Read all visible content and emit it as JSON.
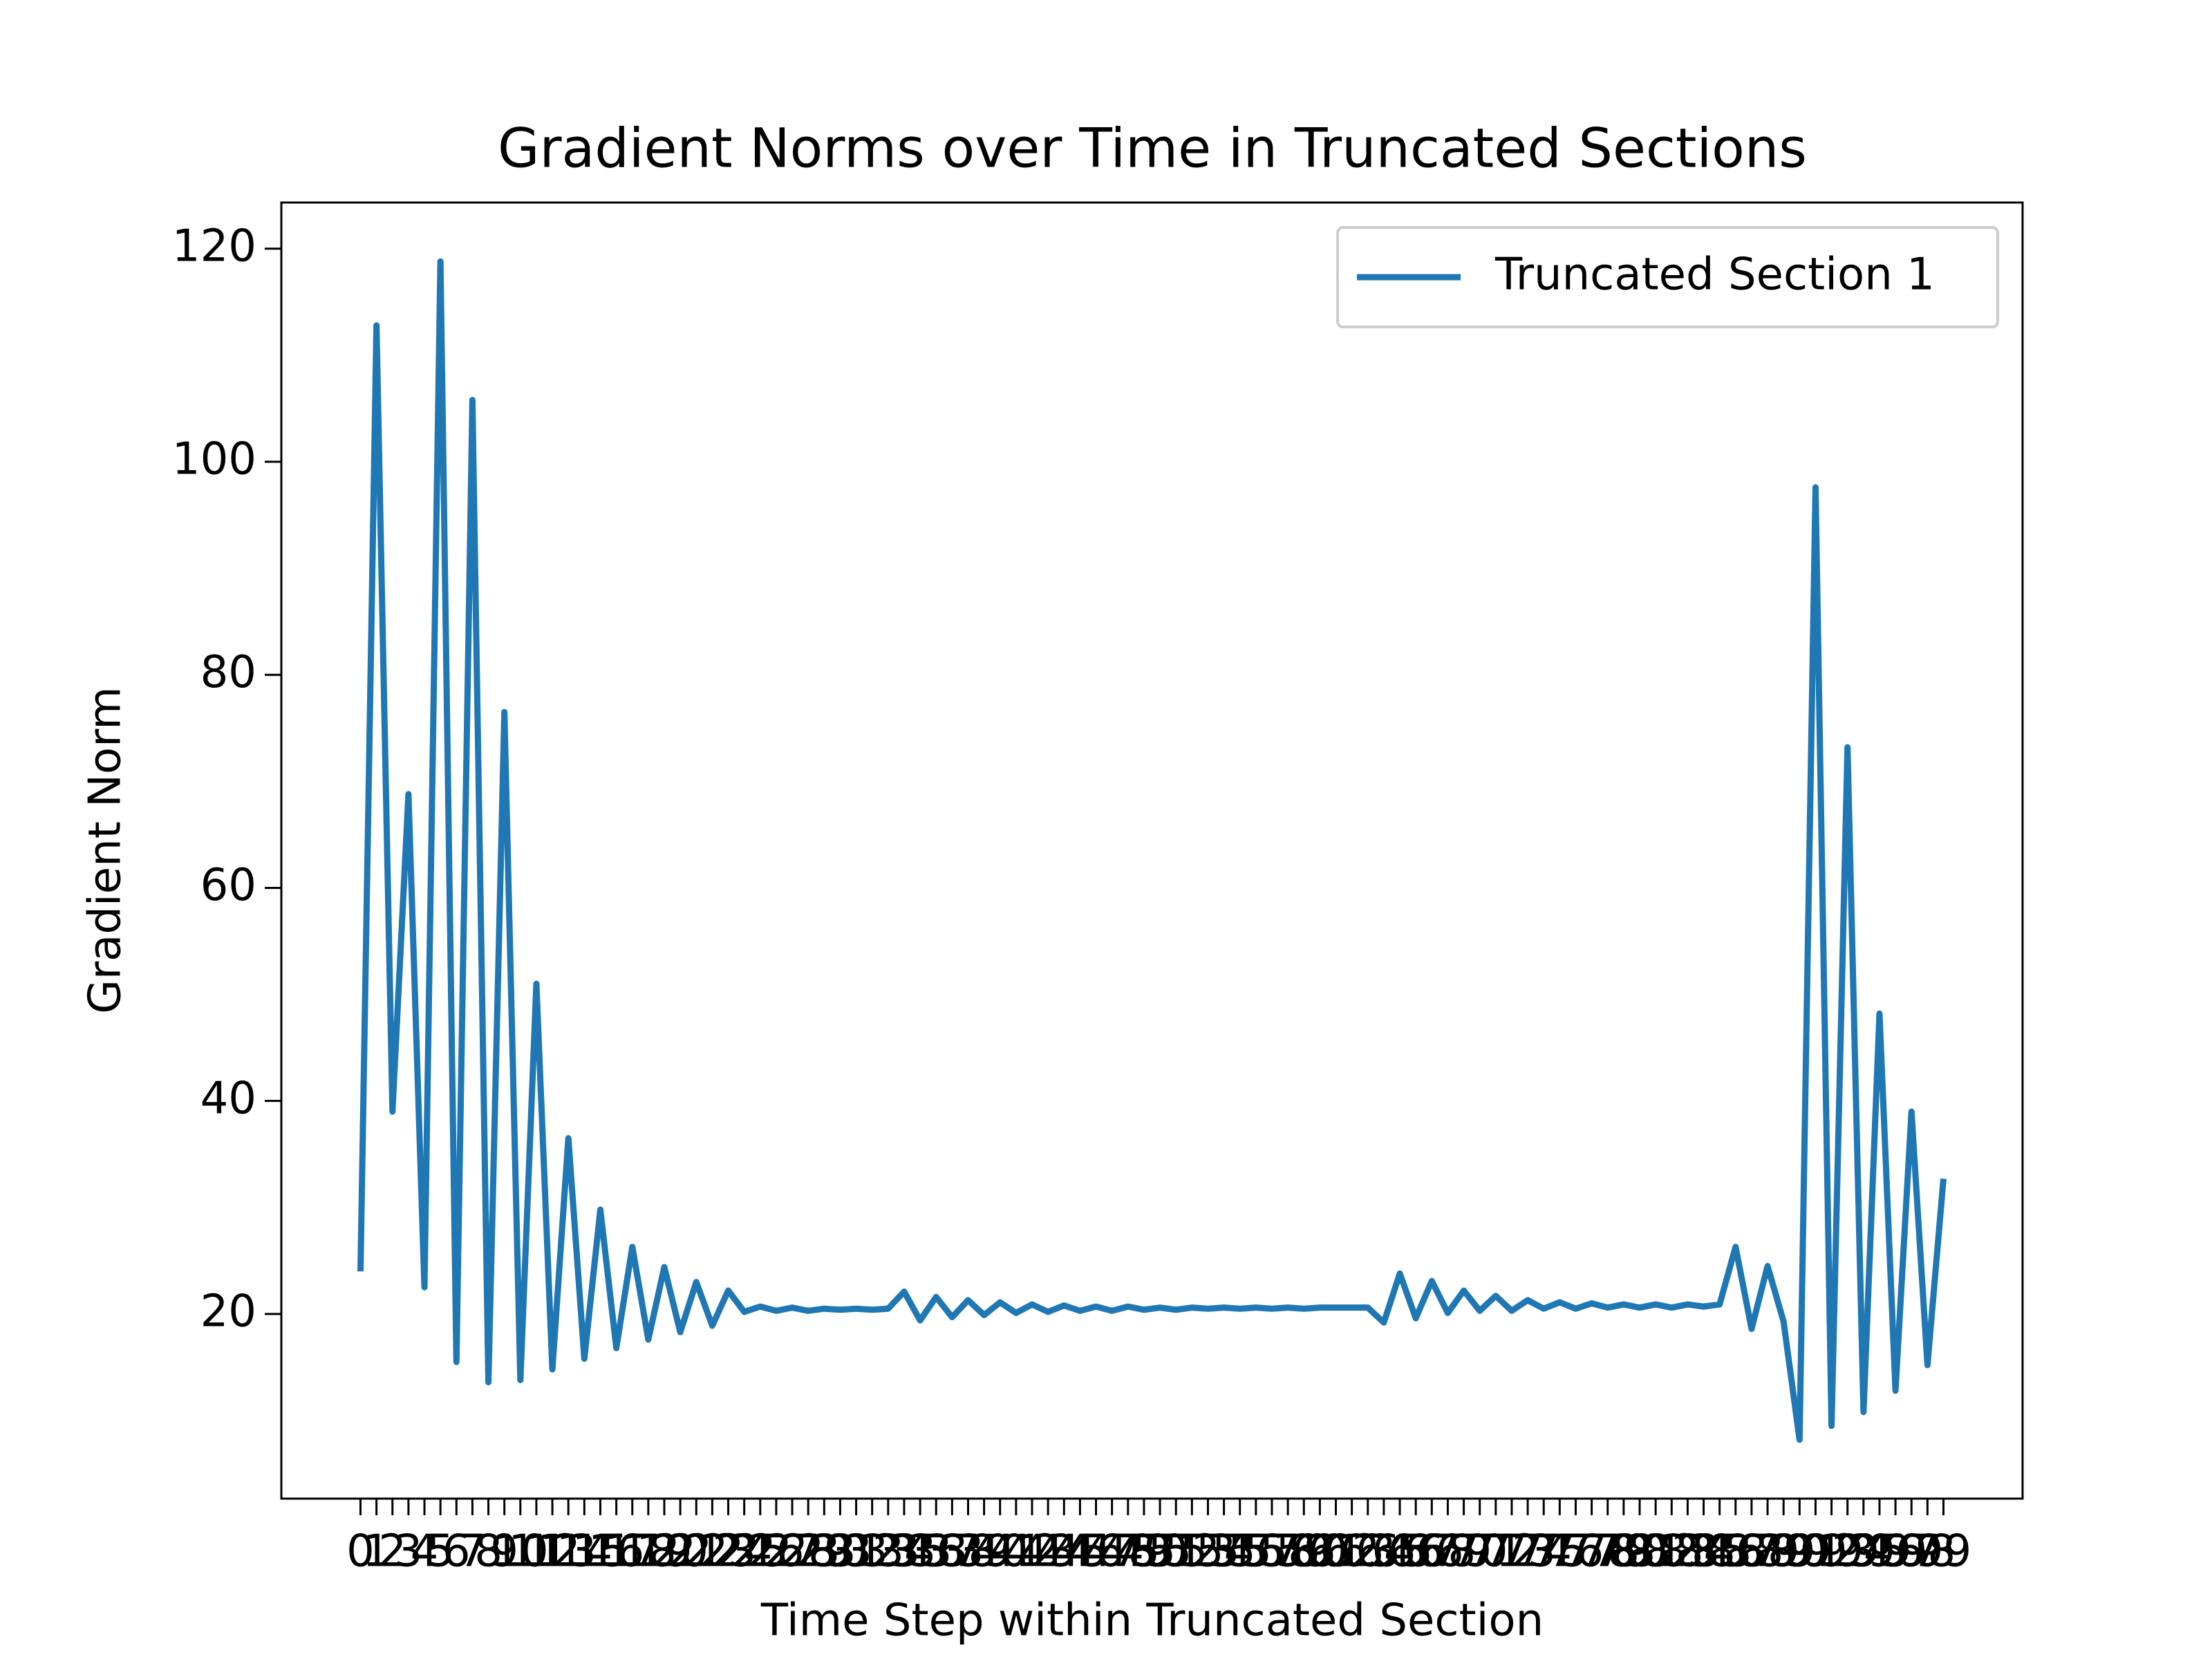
{
  "chart_data": {
    "type": "line",
    "title": "Gradient Norms over Time in Truncated Sections",
    "xlabel": "Time Step within Truncated Section",
    "ylabel": "Gradient Norm",
    "x": [
      0,
      1,
      2,
      3,
      4,
      5,
      6,
      7,
      8,
      9,
      10,
      11,
      12,
      13,
      14,
      15,
      16,
      17,
      18,
      19,
      20,
      21,
      22,
      23,
      24,
      25,
      26,
      27,
      28,
      29,
      30,
      31,
      32,
      33,
      34,
      35,
      36,
      37,
      38,
      39,
      40,
      41,
      42,
      43,
      44,
      45,
      46,
      47,
      48,
      49,
      50,
      51,
      52,
      53,
      54,
      55,
      56,
      57,
      58,
      59,
      60,
      61,
      62,
      63,
      64,
      65,
      66,
      67,
      68,
      69,
      70,
      71,
      72,
      73,
      74,
      75,
      76,
      77,
      78,
      79,
      80,
      81,
      82,
      83,
      84,
      85,
      86,
      87,
      88,
      89,
      90,
      91,
      92,
      93,
      94,
      95,
      96,
      97,
      98,
      99
    ],
    "series": [
      {
        "name": "Truncated Section 1",
        "color": "#1f77b4",
        "values": [
          24,
          112.8,
          39,
          68.8,
          22.5,
          118.8,
          15.5,
          105.8,
          13.6,
          76.5,
          13.8,
          51,
          14.8,
          36.5,
          15.8,
          29.8,
          16.8,
          26.3,
          17.6,
          24.4,
          18.3,
          23,
          18.9,
          22.2,
          20.2,
          20.7,
          20.3,
          20.6,
          20.3,
          20.5,
          20.4,
          20.5,
          20.4,
          20.5,
          22.1,
          19.4,
          21.6,
          19.7,
          21.3,
          19.9,
          21.1,
          20.1,
          20.9,
          20.2,
          20.8,
          20.3,
          20.7,
          20.3,
          20.7,
          20.4,
          20.6,
          20.4,
          20.6,
          20.5,
          20.6,
          20.5,
          20.6,
          20.5,
          20.6,
          20.5,
          20.6,
          20.6,
          20.6,
          20.6,
          19.2,
          23.8,
          19.6,
          23.1,
          20.1,
          22.2,
          20.3,
          21.7,
          20.3,
          21.3,
          20.5,
          21.1,
          20.5,
          21.0,
          20.6,
          20.9,
          20.6,
          20.9,
          20.6,
          20.9,
          20.7,
          20.9,
          26.3,
          18.6,
          24.5,
          19.3,
          8.2,
          97.6,
          9.5,
          73.2,
          10.8,
          48.2,
          12.8,
          39,
          15.2,
          32.7
        ]
      }
    ],
    "xlim": [
      -4.95,
      103.95
    ],
    "xticks": [
      0,
      1,
      2,
      3,
      4,
      5,
      6,
      7,
      8,
      9,
      10,
      11,
      12,
      13,
      14,
      15,
      16,
      17,
      18,
      19,
      20,
      21,
      22,
      23,
      24,
      25,
      26,
      27,
      28,
      29,
      30,
      31,
      32,
      33,
      34,
      35,
      36,
      37,
      38,
      39,
      40,
      41,
      42,
      43,
      44,
      45,
      46,
      47,
      48,
      49,
      50,
      51,
      52,
      53,
      54,
      55,
      56,
      57,
      58,
      59,
      60,
      61,
      62,
      63,
      64,
      65,
      66,
      67,
      68,
      69,
      70,
      71,
      72,
      73,
      74,
      75,
      76,
      77,
      78,
      79,
      80,
      81,
      82,
      83,
      84,
      85,
      86,
      87,
      88,
      89,
      90,
      91,
      92,
      93,
      94,
      95,
      96,
      97,
      98,
      99
    ],
    "ylim": [
      2.67,
      124.33
    ],
    "yticks": [
      20,
      40,
      60,
      80,
      100,
      120
    ],
    "grid": false,
    "legend": "upper right"
  }
}
